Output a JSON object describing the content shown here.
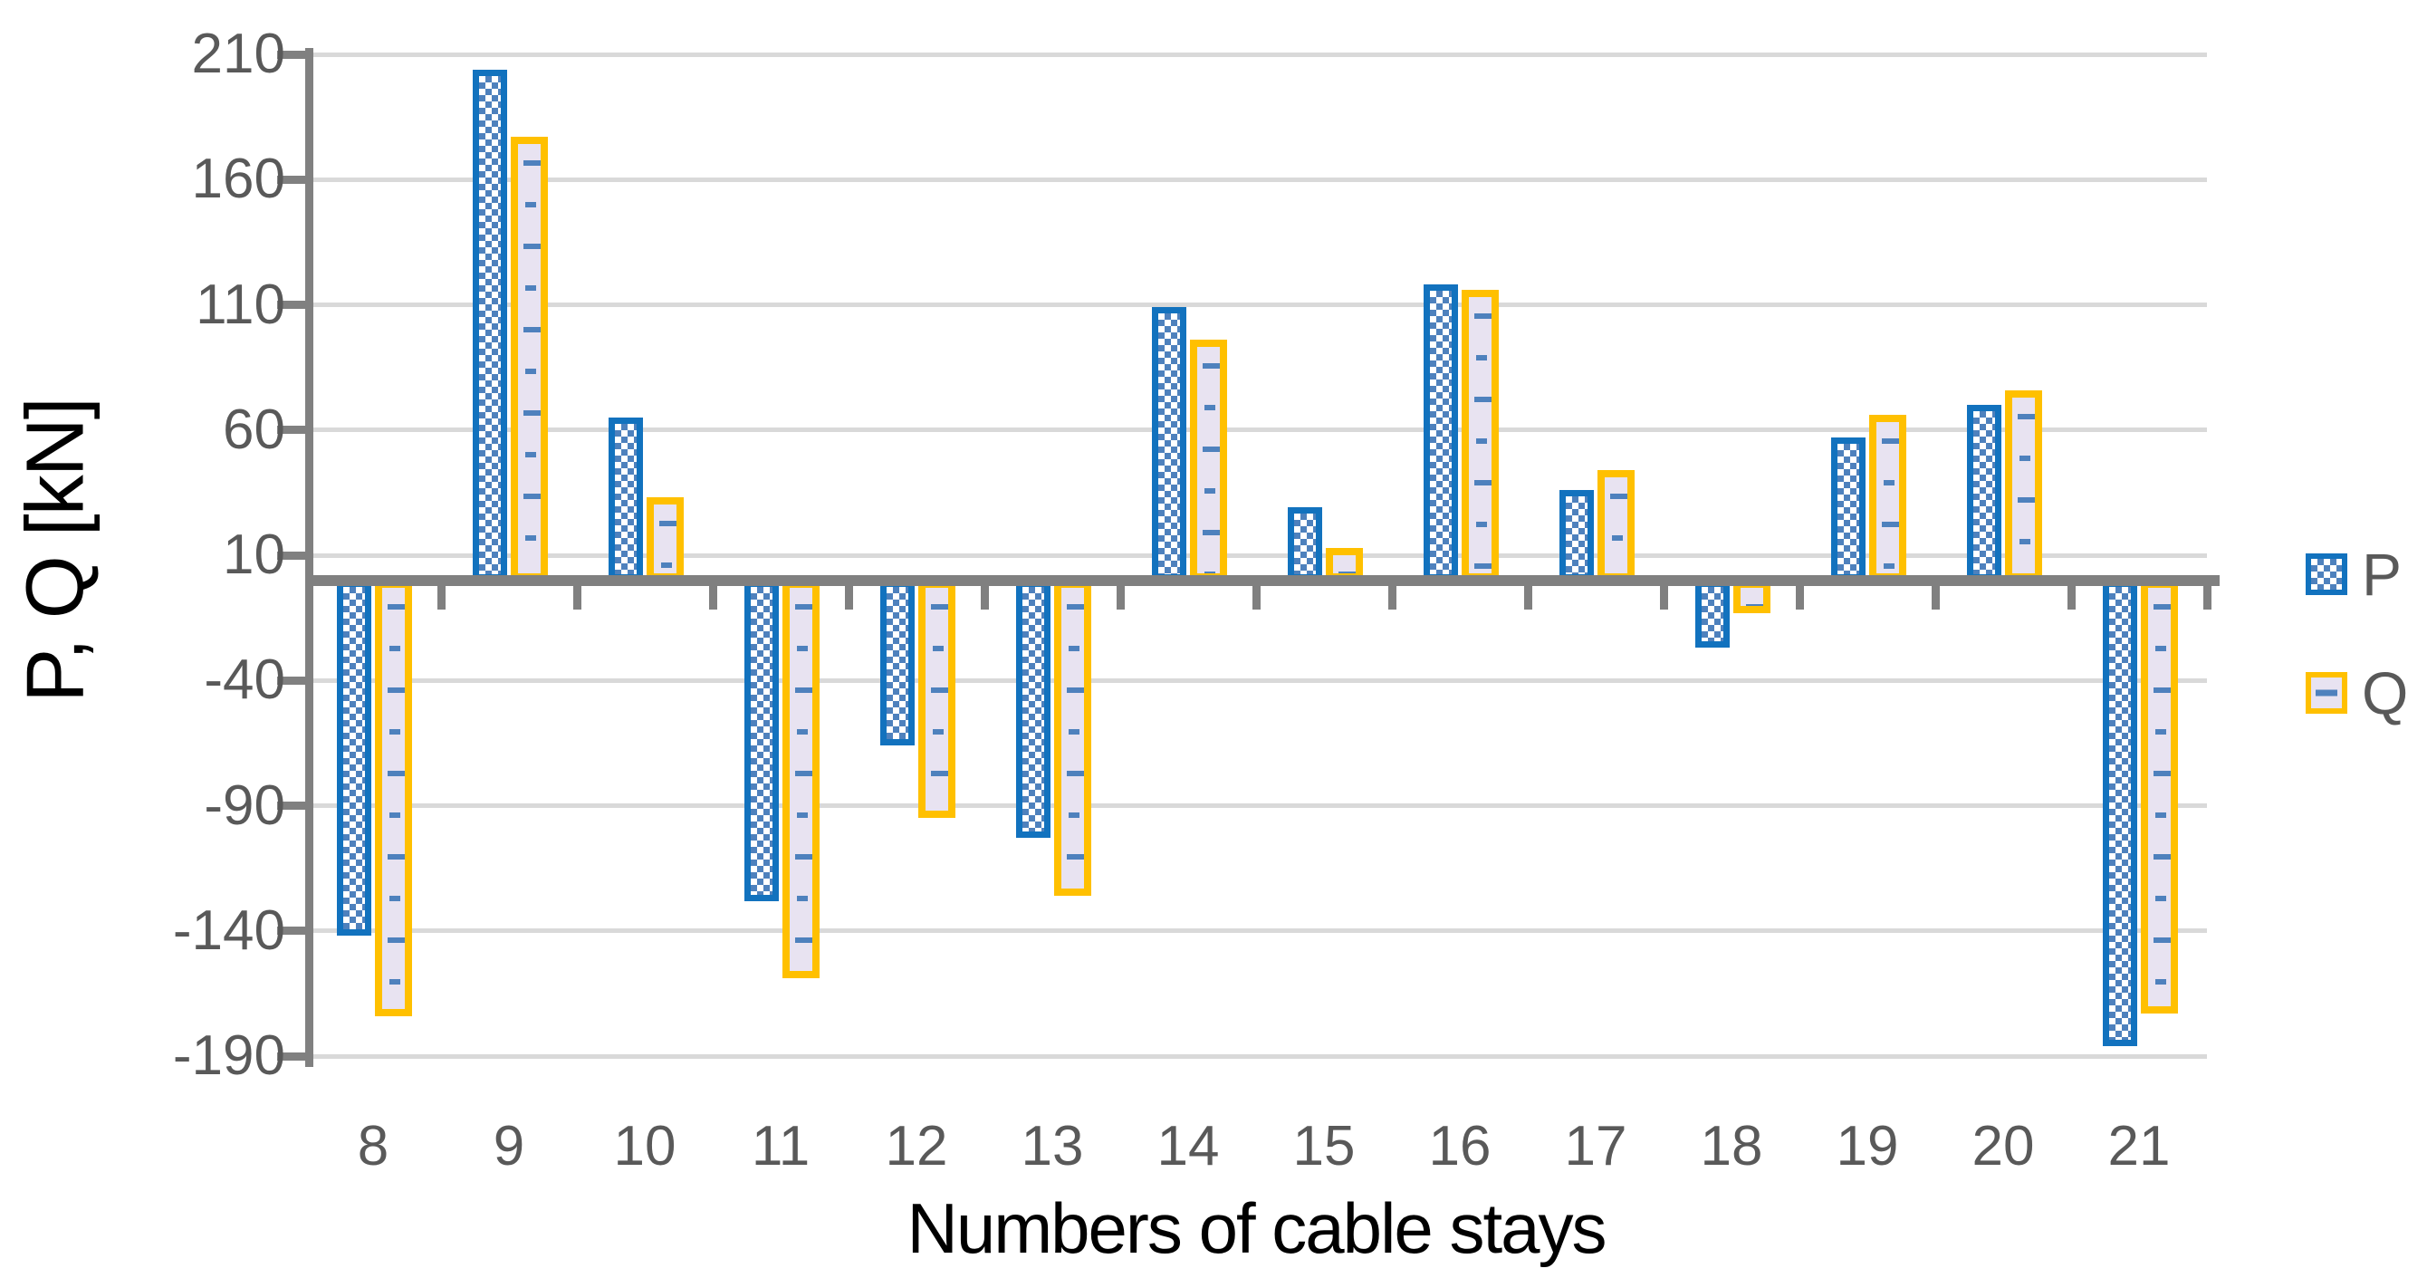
{
  "chart_data": {
    "type": "bar",
    "title": "",
    "xlabel": "Numbers of cable stays",
    "ylabel": "P, Q [kN]",
    "categories": [
      "8",
      "9",
      "10",
      "11",
      "12",
      "13",
      "14",
      "15",
      "16",
      "17",
      "18",
      "19",
      "20",
      "21"
    ],
    "series": [
      {
        "name": "P",
        "pattern": "blue-checkerboard",
        "values": [
          -142,
          204,
          65,
          -128,
          -66,
          -103,
          109,
          29,
          118,
          36,
          -27,
          57,
          70,
          -186
        ]
      },
      {
        "name": "Q",
        "pattern": "lavender-with-blue-dashes",
        "values": [
          -174,
          177,
          33,
          -159,
          -95,
          -126,
          96,
          13,
          116,
          44,
          -13,
          66,
          76,
          -173
        ]
      }
    ],
    "y_ticks": [
      210,
      160,
      110,
      60,
      10,
      -40,
      -90,
      -140,
      -190
    ],
    "ylim": [
      -190,
      210
    ],
    "grid": true,
    "legend_position": "right-middle"
  },
  "legend": {
    "items": [
      {
        "label": "P"
      },
      {
        "label": "Q"
      }
    ]
  },
  "colors": {
    "p_border": "#1272BE",
    "p_checker": "#4E81BD",
    "q_border": "#FFC000",
    "q_fill": "#E8E3F1",
    "q_dash": "#4E81BD",
    "gridline": "#D9D9D9",
    "axis": "#808080",
    "tick_text": "#595959",
    "title_text": "#000000"
  }
}
